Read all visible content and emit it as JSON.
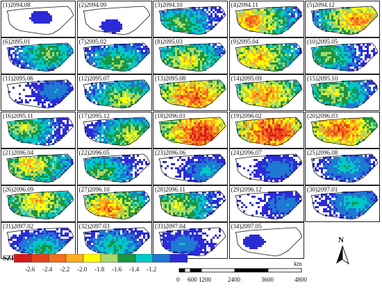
{
  "panels": [
    {
      "label": "(1)2094.08",
      "intensity": 0.05
    },
    {
      "label": "(2)2094.09",
      "intensity": 0.05
    },
    {
      "label": "(3)2094.10",
      "intensity": 0.45
    },
    {
      "label": "(4)2094.11",
      "intensity": 0.75
    },
    {
      "label": "(5)2094.12",
      "intensity": 0.75
    },
    {
      "label": "(6)2095.01",
      "intensity": 0.45
    },
    {
      "label": "(7)2095.02",
      "intensity": 0.45
    },
    {
      "label": "(8)2095.03",
      "intensity": 0.6
    },
    {
      "label": "(9)2095.04",
      "intensity": 0.7
    },
    {
      "label": "(10)2095.05",
      "intensity": 0.45
    },
    {
      "label": "(11)2095.06",
      "intensity": 0.2
    },
    {
      "label": "(12)2095.07",
      "intensity": 0.55
    },
    {
      "label": "(13)2095.08",
      "intensity": 0.85
    },
    {
      "label": "(14)2095.09",
      "intensity": 0.75
    },
    {
      "label": "(15)2095.10",
      "intensity": 0.55
    },
    {
      "label": "(16)2095.11",
      "intensity": 0.5
    },
    {
      "label": "(17)2095.12",
      "intensity": 0.55
    },
    {
      "label": "(18)2096.01",
      "intensity": 0.95
    },
    {
      "label": "(19)2096.02",
      "intensity": 0.95
    },
    {
      "label": "(20)2096.03",
      "intensity": 0.85
    },
    {
      "label": "(21)2096.04",
      "intensity": 0.65
    },
    {
      "label": "(22)2096.05",
      "intensity": 0.45
    },
    {
      "label": "(23)2096.06",
      "intensity": 0.25
    },
    {
      "label": "(24)2096.07",
      "intensity": 0.2
    },
    {
      "label": "(25)2096.08",
      "intensity": 0.3
    },
    {
      "label": "(26)2096.09",
      "intensity": 0.65
    },
    {
      "label": "(27)2096.10",
      "intensity": 0.75
    },
    {
      "label": "(28)2096.11",
      "intensity": 0.55
    },
    {
      "label": "(29)2096.12",
      "intensity": 0.2
    },
    {
      "label": "(30)2097.01",
      "intensity": 0.3
    },
    {
      "label": "(31)2097.02",
      "intensity": 0.35
    },
    {
      "label": "(32)2097.03",
      "intensity": 0.35
    },
    {
      "label": "(33)2097.04",
      "intensity": 0.2
    },
    {
      "label": "(34)2097.05",
      "intensity": 0.05
    }
  ],
  "legend": {
    "title": "SZI",
    "ticks": [
      "-2.6",
      "-2.4",
      "-2.2",
      "-2.0",
      "-1.8",
      "-1.6",
      "-1.4",
      "-1.2"
    ],
    "colors": [
      "#d7191c",
      "#e8411a",
      "#f46d1e",
      "#fdae22",
      "#ffff00",
      "#a6d96a",
      "#1a9641",
      "#00c8c8",
      "#1f78d1",
      "#2b2bd6"
    ]
  },
  "scale_bar": {
    "unit": "km",
    "labels": [
      "0",
      "600",
      "1200",
      "2400",
      "3600",
      "4800"
    ]
  },
  "north_arrow": {
    "letter": "N"
  }
}
